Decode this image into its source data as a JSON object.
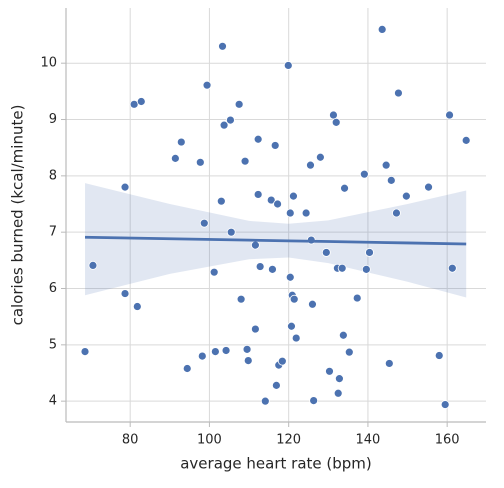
{
  "chart_data": {
    "type": "scatter",
    "xlabel": "average heart rate (bpm)",
    "ylabel": "calories burned (kcal/minute)",
    "x": [
      68.6,
      70.6,
      78.7,
      78.7,
      81.0,
      81.8,
      82.8,
      91.4,
      92.9,
      94.4,
      97.7,
      98.2,
      98.7,
      99.4,
      101.2,
      101.5,
      103.0,
      103.3,
      103.7,
      104.2,
      105.3,
      105.5,
      107.5,
      108.0,
      109.0,
      109.5,
      109.8,
      111.6,
      111.6,
      112.3,
      112.3,
      112.8,
      114.1,
      115.6,
      115.9,
      116.6,
      116.9,
      117.2,
      117.5,
      118.4,
      119.9,
      120.4,
      120.4,
      120.7,
      120.9,
      121.2,
      121.4,
      121.9,
      124.4,
      125.5,
      125.7,
      126.0,
      126.3,
      128.0,
      129.5,
      130.3,
      131.3,
      132.0,
      132.3,
      132.5,
      132.8,
      133.5,
      133.8,
      134.1,
      135.3,
      137.3,
      139.1,
      139.6,
      140.4,
      143.6,
      144.6,
      145.4,
      145.9,
      147.2,
      147.7,
      149.7,
      155.3,
      158.0,
      159.5,
      160.6,
      161.3,
      164.8
    ],
    "values": [
      4.88,
      6.41,
      7.8,
      5.91,
      9.27,
      5.68,
      9.32,
      8.31,
      8.6,
      4.58,
      8.24,
      4.8,
      7.16,
      9.61,
      6.29,
      4.88,
      7.55,
      10.3,
      8.9,
      4.9,
      8.99,
      7.0,
      9.27,
      5.81,
      8.26,
      4.92,
      4.72,
      6.77,
      5.28,
      7.67,
      8.65,
      6.39,
      4.0,
      7.57,
      6.34,
      8.54,
      4.28,
      7.5,
      4.64,
      4.71,
      9.96,
      6.2,
      7.34,
      5.33,
      5.88,
      7.64,
      5.81,
      5.12,
      7.34,
      8.19,
      6.86,
      5.72,
      4.01,
      8.33,
      6.64,
      4.53,
      9.08,
      8.95,
      6.36,
      4.14,
      4.4,
      6.36,
      5.17,
      7.78,
      4.87,
      5.83,
      8.03,
      6.34,
      6.64,
      10.6,
      8.19,
      4.67,
      7.92,
      7.34,
      9.47,
      7.64,
      7.8,
      4.81,
      3.94,
      9.08,
      6.36,
      8.63
    ],
    "color": "#4c72b0",
    "regression": {
      "x": [
        68.6,
        90,
        110,
        120,
        130,
        150,
        164.8
      ],
      "values": [
        6.91,
        6.884,
        6.859,
        6.846,
        6.834,
        6.809,
        6.79
      ],
      "lower": [
        5.88,
        6.26,
        6.52,
        6.55,
        6.45,
        6.12,
        5.84
      ],
      "upper": [
        7.87,
        7.5,
        7.2,
        7.15,
        7.21,
        7.5,
        7.74
      ]
    },
    "xlim": [
      63.8,
      169.8
    ],
    "ylim": [
      3.63,
      10.98
    ],
    "xticks": [
      80,
      100,
      120,
      140,
      160
    ],
    "yticks": [
      4,
      5,
      6,
      7,
      8,
      9,
      10
    ],
    "grid": true
  }
}
